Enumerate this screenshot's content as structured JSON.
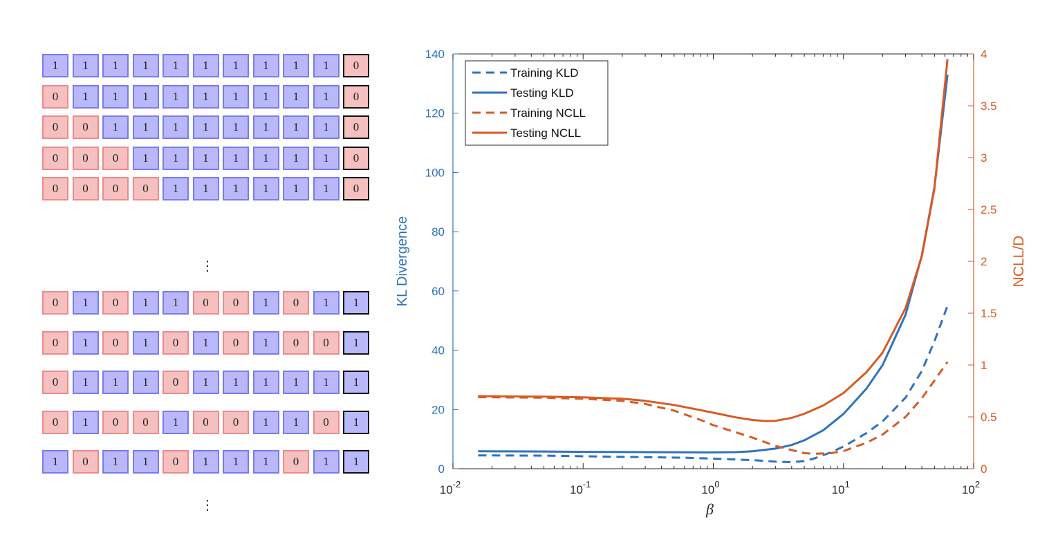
{
  "sequences": {
    "top_rows": [
      {
        "inputs": [
          "1",
          "1",
          "1",
          "1",
          "1",
          "1",
          "1",
          "1",
          "1",
          "1"
        ],
        "label": "0"
      },
      {
        "inputs": [
          "0",
          "1",
          "1",
          "1",
          "1",
          "1",
          "1",
          "1",
          "1",
          "1"
        ],
        "label": "0"
      },
      {
        "inputs": [
          "0",
          "0",
          "1",
          "1",
          "1",
          "1",
          "1",
          "1",
          "1",
          "1"
        ],
        "label": "0"
      },
      {
        "inputs": [
          "0",
          "0",
          "0",
          "1",
          "1",
          "1",
          "1",
          "1",
          "1",
          "1"
        ],
        "label": "0"
      },
      {
        "inputs": [
          "0",
          "0",
          "0",
          "0",
          "1",
          "1",
          "1",
          "1",
          "1",
          "1"
        ],
        "label": "0"
      }
    ],
    "bottom_rows": [
      {
        "inputs": [
          "0",
          "1",
          "0",
          "1",
          "1",
          "0",
          "0",
          "1",
          "0",
          "1"
        ],
        "label": "1"
      },
      {
        "inputs": [
          "0",
          "1",
          "0",
          "1",
          "0",
          "1",
          "0",
          "1",
          "0",
          "0"
        ],
        "label": "1"
      },
      {
        "inputs": [
          "0",
          "1",
          "1",
          "1",
          "0",
          "1",
          "1",
          "1",
          "1",
          "1"
        ],
        "label": "1"
      },
      {
        "inputs": [
          "0",
          "1",
          "0",
          "0",
          "1",
          "0",
          "0",
          "1",
          "1",
          "0"
        ],
        "label": "1"
      },
      {
        "inputs": [
          "1",
          "0",
          "1",
          "1",
          "0",
          "1",
          "1",
          "1",
          "0",
          "1"
        ],
        "label": "1"
      }
    ],
    "ellipsis": "⋮"
  },
  "chart_data": {
    "type": "line",
    "xlabel": "β",
    "ylabel_left": "KL Divergence",
    "ylabel_right": "NCLL/D",
    "xscale": "log",
    "xlim": [
      0.01,
      100
    ],
    "xticks": [
      {
        "value": 0.01,
        "base": "10",
        "exp": "-2"
      },
      {
        "value": 0.1,
        "base": "10",
        "exp": "-1"
      },
      {
        "value": 1,
        "base": "10",
        "exp": "0"
      },
      {
        "value": 10,
        "base": "10",
        "exp": "1"
      },
      {
        "value": 100,
        "base": "10",
        "exp": "2"
      }
    ],
    "ylim_left": [
      0,
      140
    ],
    "yticks_left": [
      "0",
      "20",
      "40",
      "60",
      "80",
      "100",
      "120",
      "140"
    ],
    "ylim_right": [
      0,
      4
    ],
    "yticks_right": [
      "0",
      "0.5",
      "1",
      "1.5",
      "2",
      "2.5",
      "3",
      "3.5",
      "4"
    ],
    "grid": false,
    "legend_position": "top-left",
    "colors": {
      "blue": "#2f72bd",
      "orange": "#d95a23",
      "axis": "#262626"
    },
    "series": [
      {
        "name": "Training KLD",
        "axis": "left",
        "style": "dashed",
        "color": "#2f72bd",
        "points": [
          [
            0.0156,
            4.5
          ],
          [
            0.05,
            4.4
          ],
          [
            0.1,
            4.2
          ],
          [
            0.3,
            3.9
          ],
          [
            0.6,
            3.7
          ],
          [
            1,
            3.4
          ],
          [
            2,
            2.9
          ],
          [
            3,
            2.4
          ],
          [
            4,
            2.2
          ],
          [
            5,
            2.6
          ],
          [
            6,
            3.5
          ],
          [
            8,
            5.5
          ],
          [
            10,
            7.5
          ],
          [
            15,
            12
          ],
          [
            20,
            16
          ],
          [
            30,
            24
          ],
          [
            40,
            33
          ],
          [
            50,
            43
          ],
          [
            63,
            55
          ]
        ]
      },
      {
        "name": "Testing KLD",
        "axis": "left",
        "style": "solid",
        "color": "#2f72bd",
        "points": [
          [
            0.0156,
            5.9
          ],
          [
            0.05,
            5.8
          ],
          [
            0.1,
            5.7
          ],
          [
            0.3,
            5.6
          ],
          [
            1,
            5.5
          ],
          [
            1.5,
            5.6
          ],
          [
            2,
            5.9
          ],
          [
            3,
            6.8
          ],
          [
            4,
            8
          ],
          [
            5,
            9.6
          ],
          [
            7,
            13
          ],
          [
            10,
            18.5
          ],
          [
            15,
            27
          ],
          [
            20,
            35
          ],
          [
            30,
            52
          ],
          [
            40,
            72
          ],
          [
            50,
            95
          ],
          [
            63,
            133
          ]
        ]
      },
      {
        "name": "Training NCLL",
        "axis": "right",
        "style": "dashed",
        "color": "#d95a23",
        "points": [
          [
            0.0156,
            0.69
          ],
          [
            0.05,
            0.685
          ],
          [
            0.1,
            0.675
          ],
          [
            0.2,
            0.655
          ],
          [
            0.3,
            0.625
          ],
          [
            0.5,
            0.56
          ],
          [
            0.8,
            0.47
          ],
          [
            1,
            0.42
          ],
          [
            2,
            0.3
          ],
          [
            3,
            0.22
          ],
          [
            4,
            0.18
          ],
          [
            5,
            0.15
          ],
          [
            6,
            0.145
          ],
          [
            8,
            0.15
          ],
          [
            10,
            0.17
          ],
          [
            15,
            0.25
          ],
          [
            20,
            0.33
          ],
          [
            30,
            0.5
          ],
          [
            40,
            0.68
          ],
          [
            50,
            0.85
          ],
          [
            63,
            1.03
          ]
        ]
      },
      {
        "name": "Testing NCLL",
        "axis": "right",
        "style": "solid",
        "color": "#d95a23",
        "points": [
          [
            0.0156,
            0.7
          ],
          [
            0.05,
            0.695
          ],
          [
            0.1,
            0.688
          ],
          [
            0.2,
            0.675
          ],
          [
            0.3,
            0.655
          ],
          [
            0.5,
            0.615
          ],
          [
            0.8,
            0.565
          ],
          [
            1,
            0.54
          ],
          [
            1.5,
            0.495
          ],
          [
            2,
            0.47
          ],
          [
            2.5,
            0.46
          ],
          [
            3,
            0.462
          ],
          [
            4,
            0.49
          ],
          [
            5,
            0.53
          ],
          [
            7,
            0.61
          ],
          [
            10,
            0.73
          ],
          [
            15,
            0.93
          ],
          [
            20,
            1.12
          ],
          [
            30,
            1.55
          ],
          [
            40,
            2.05
          ],
          [
            50,
            2.7
          ],
          [
            63,
            3.95
          ]
        ]
      }
    ]
  }
}
